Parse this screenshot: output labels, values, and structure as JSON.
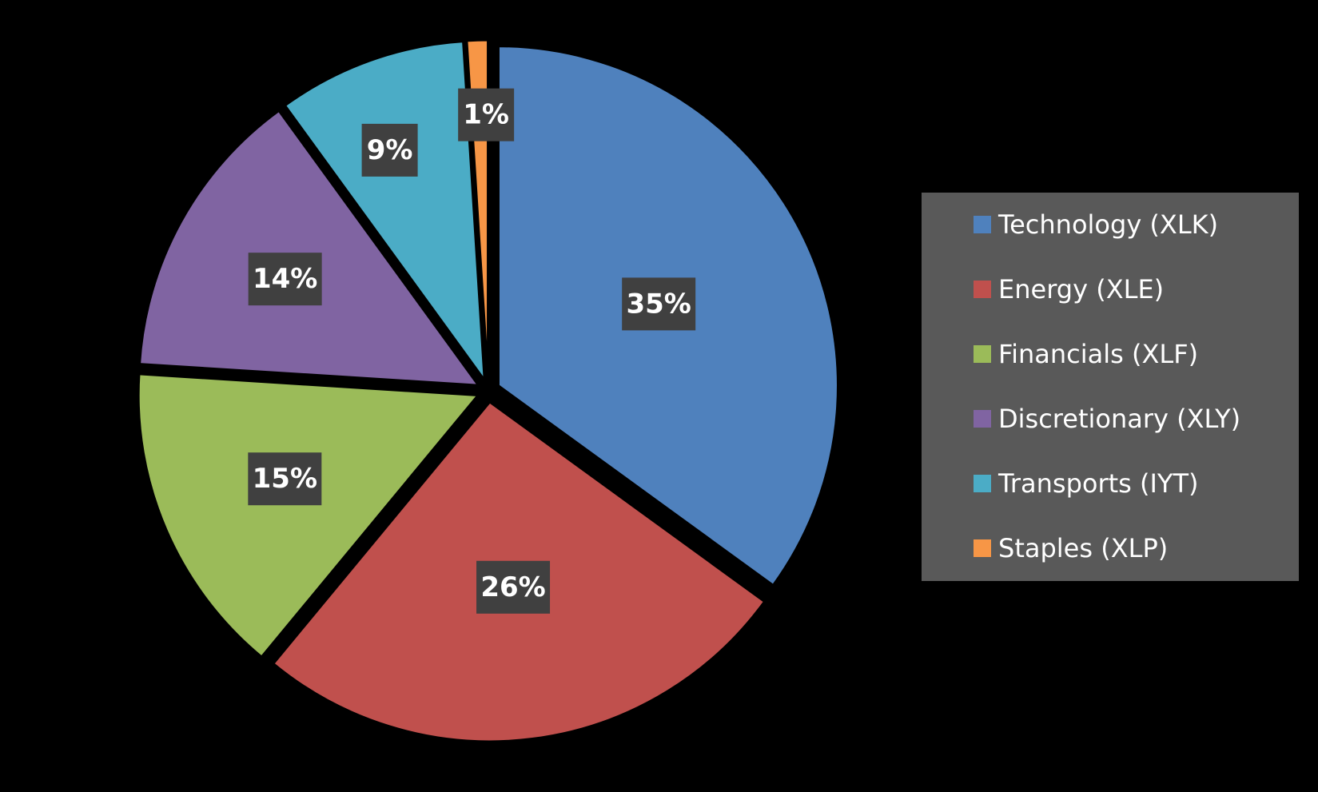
{
  "chart_data": {
    "type": "pie",
    "title": "",
    "slices": [
      {
        "label": "Technology (XLK)",
        "value": 35,
        "display": "35%",
        "color": "#4F81BD"
      },
      {
        "label": "Energy (XLE)",
        "value": 26,
        "display": "26%",
        "color": "#C0504D"
      },
      {
        "label": "Financials (XLF)",
        "value": 15,
        "display": "15%",
        "color": "#9BBB59"
      },
      {
        "label": "Discretionary (XLY)",
        "value": 14,
        "display": "14%",
        "color": "#8064A2"
      },
      {
        "label": "Transports (IYT)",
        "value": 9,
        "display": "9%",
        "color": "#4BACC6"
      },
      {
        "label": "Staples (XLP)",
        "value": 1,
        "display": "1%",
        "color": "#F79646"
      }
    ],
    "legend_position": "right",
    "background_color": "#000000",
    "legend_background_color": "#595959",
    "data_label_background_color": "#404040"
  }
}
